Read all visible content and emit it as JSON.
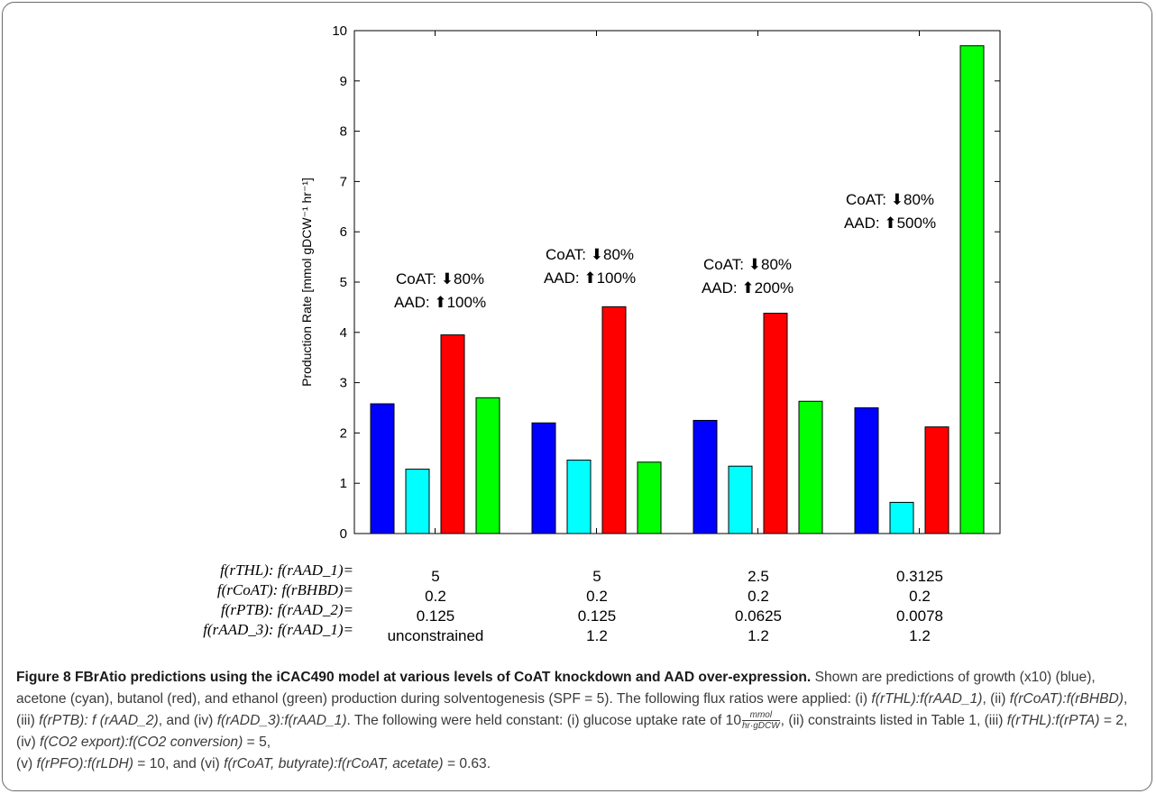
{
  "figure": {
    "label": "Figure 8",
    "title": "FBrAtio predictions using the iCAC490 model at various levels of CoAT knockdown and AAD over-expression.",
    "caption_parts": {
      "intro": "Shown are predictions of growth (x10) (blue), acetone (cyan), butanol (red), and ethanol (green) production during solventogenesis (SPF = 5).  The following flux ratios were applied: (i) ",
      "r1": "f(rTHL):f(rAAD_1)",
      "r2": "f(rCoAT):f(rBHBD)",
      "r3": "f(rPTB): f (rAAD_2)",
      "r4": "f(rADD_3):f(rAAD_1)",
      "glucose_prefix": "The following were held constant: (i) glucose uptake rate of 10",
      "frac_num": "mmol",
      "frac_den": "hr·gDCW",
      "c2": "constraints listed in Table 1",
      "c3": "f(rTHL):f(rPTA)",
      "c3v": "= 2",
      "c4": "f(CO2 export):f(CO2 conversion)",
      "c4v": "= 5",
      "c5": "f(rPFO):f(rLDH)",
      "c5v": "= 10",
      "c6": "f(rCoAT, butyrate):f(rCoAT, acetate)",
      "c6v": "= 0.63."
    }
  },
  "colors": {
    "growth": "#0000ff",
    "acetone": "#00ffff",
    "butanol": "#ff0000",
    "ethanol": "#00ff00",
    "axis": "#000000"
  },
  "ratio_table": {
    "row_labels": [
      "f(rTHL): f(rAAD_1)=",
      "f(rCoAT): f(rBHBD)=",
      "f(rPTB): f(rAAD_2)=",
      "f(rAAD_3): f(rAAD_1)="
    ],
    "columns": [
      [
        "5",
        "0.2",
        "0.125",
        "unconstrained"
      ],
      [
        "5",
        "0.2",
        "0.125",
        "1.2"
      ],
      [
        "2.5",
        "0.2",
        "0.0625",
        "1.2"
      ],
      [
        "0.3125",
        "0.2",
        "0.0078",
        "1.2"
      ]
    ]
  },
  "chart_data": {
    "type": "bar",
    "title": "",
    "xlabel": "",
    "ylabel": "Production Rate [mmol gDCW⁻¹ hr⁻¹]",
    "ylim": [
      0,
      10
    ],
    "yticks": [
      "0",
      "1",
      "2",
      "3",
      "4",
      "5",
      "6",
      "7",
      "8",
      "9",
      "10"
    ],
    "grid": false,
    "legend": "none",
    "groups": 4,
    "series": [
      {
        "color_key": "growth",
        "values": [
          2.58,
          2.2,
          2.25,
          2.5
        ]
      },
      {
        "color_key": "acetone",
        "values": [
          1.28,
          1.46,
          1.34,
          0.62
        ]
      },
      {
        "color_key": "butanol",
        "values": [
          3.95,
          4.51,
          4.38,
          2.12
        ]
      },
      {
        "color_key": "ethanol",
        "values": [
          2.7,
          1.42,
          2.63,
          9.7
        ]
      }
    ],
    "annotations": [
      {
        "line1": "CoAT: ⬇80%",
        "line2": "AAD: ⬆100%"
      },
      {
        "line1": "CoAT: ⬇80%",
        "line2": "AAD: ⬆100%"
      },
      {
        "line1": "CoAT: ⬇80%",
        "line2": "AAD: ⬆200%"
      },
      {
        "line1": "CoAT: ⬇80%",
        "line2": "AAD: ⬆500%"
      }
    ]
  }
}
